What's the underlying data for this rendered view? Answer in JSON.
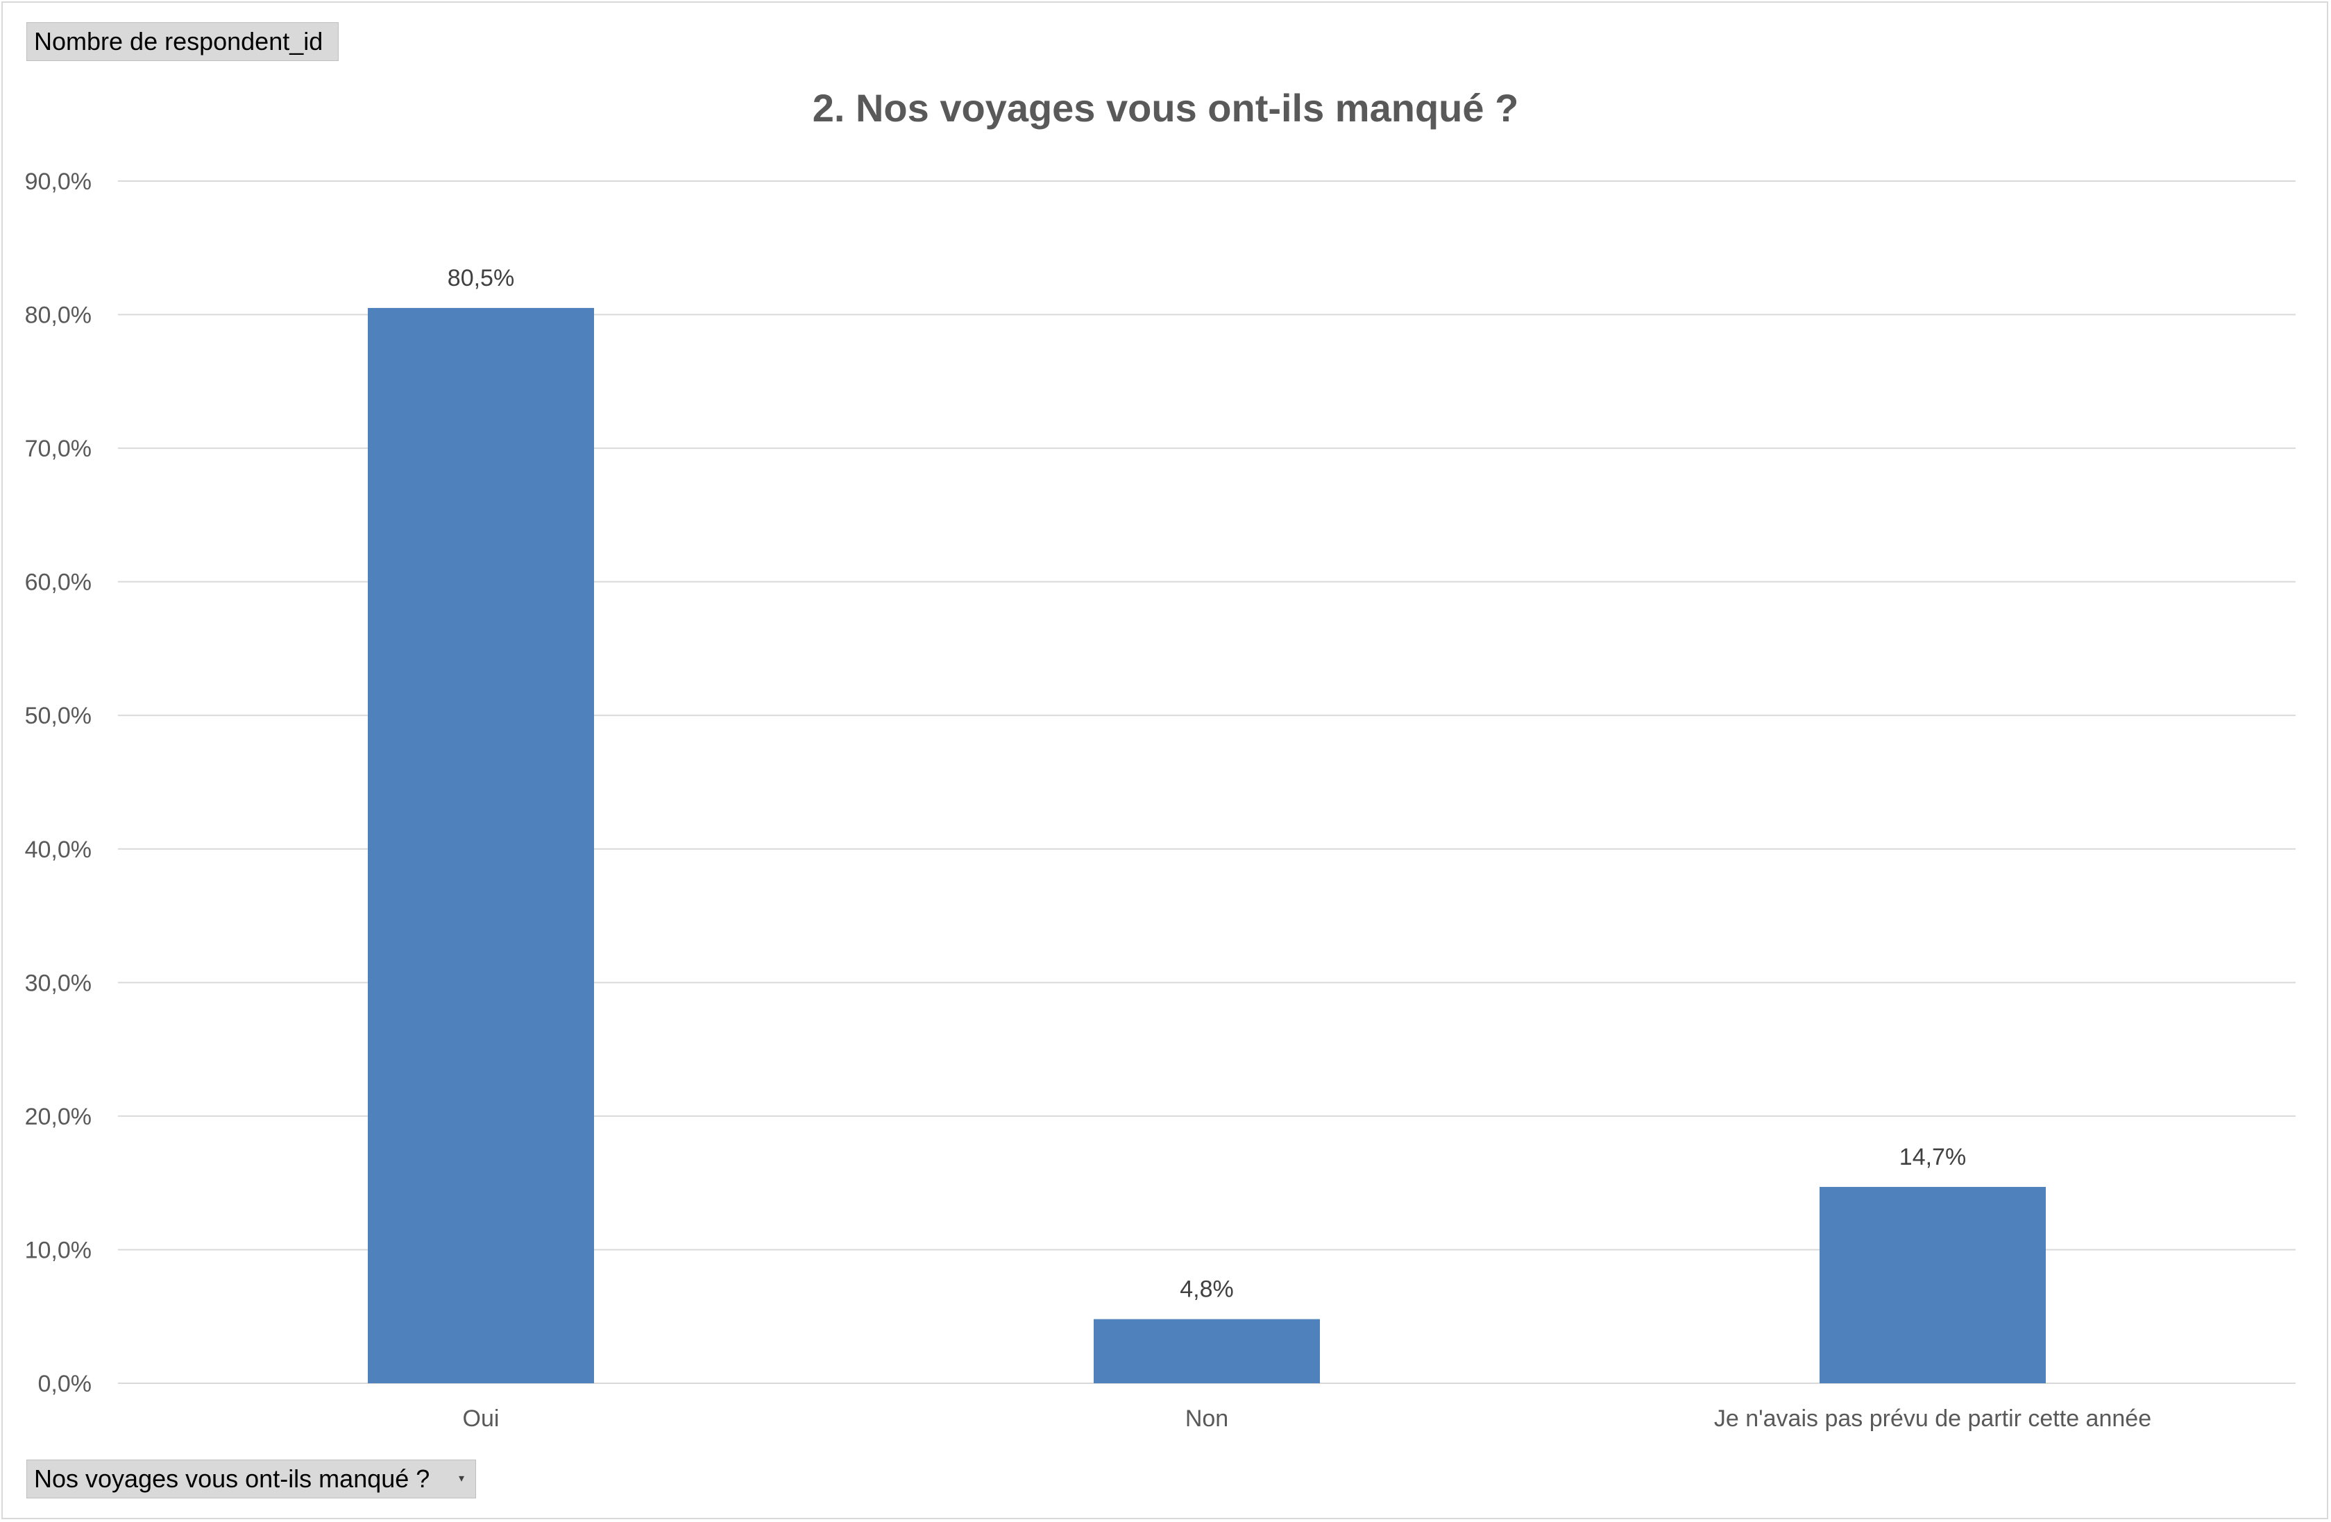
{
  "value_field_button": "Nombre de respondent_id",
  "axis_field_button": "Nos voyages vous ont-ils manqué ?",
  "dropdown_icon": "chevron-down-icon",
  "colors": {
    "bar": "#4f81bd",
    "gridline": "#d9d9d9",
    "axis_text": "#595959"
  },
  "chart_data": {
    "type": "bar",
    "title": "2. Nos voyages vous ont-ils manqué ?",
    "xlabel": "",
    "ylabel": "",
    "categories": [
      "Oui",
      "Non",
      "Je n'avais pas prévu de partir cette année"
    ],
    "values": [
      80.5,
      4.8,
      14.7
    ],
    "data_labels": [
      "80,5%",
      "4,8%",
      "14,7%"
    ],
    "ylim": [
      0,
      90
    ],
    "yticks": [
      0,
      10,
      20,
      30,
      40,
      50,
      60,
      70,
      80,
      90
    ],
    "ytick_labels": [
      "0,0%",
      "10,0%",
      "20,0%",
      "30,0%",
      "40,0%",
      "50,0%",
      "60,0%",
      "70,0%",
      "80,0%",
      "90,0%"
    ],
    "grid": true,
    "legend": "none"
  }
}
